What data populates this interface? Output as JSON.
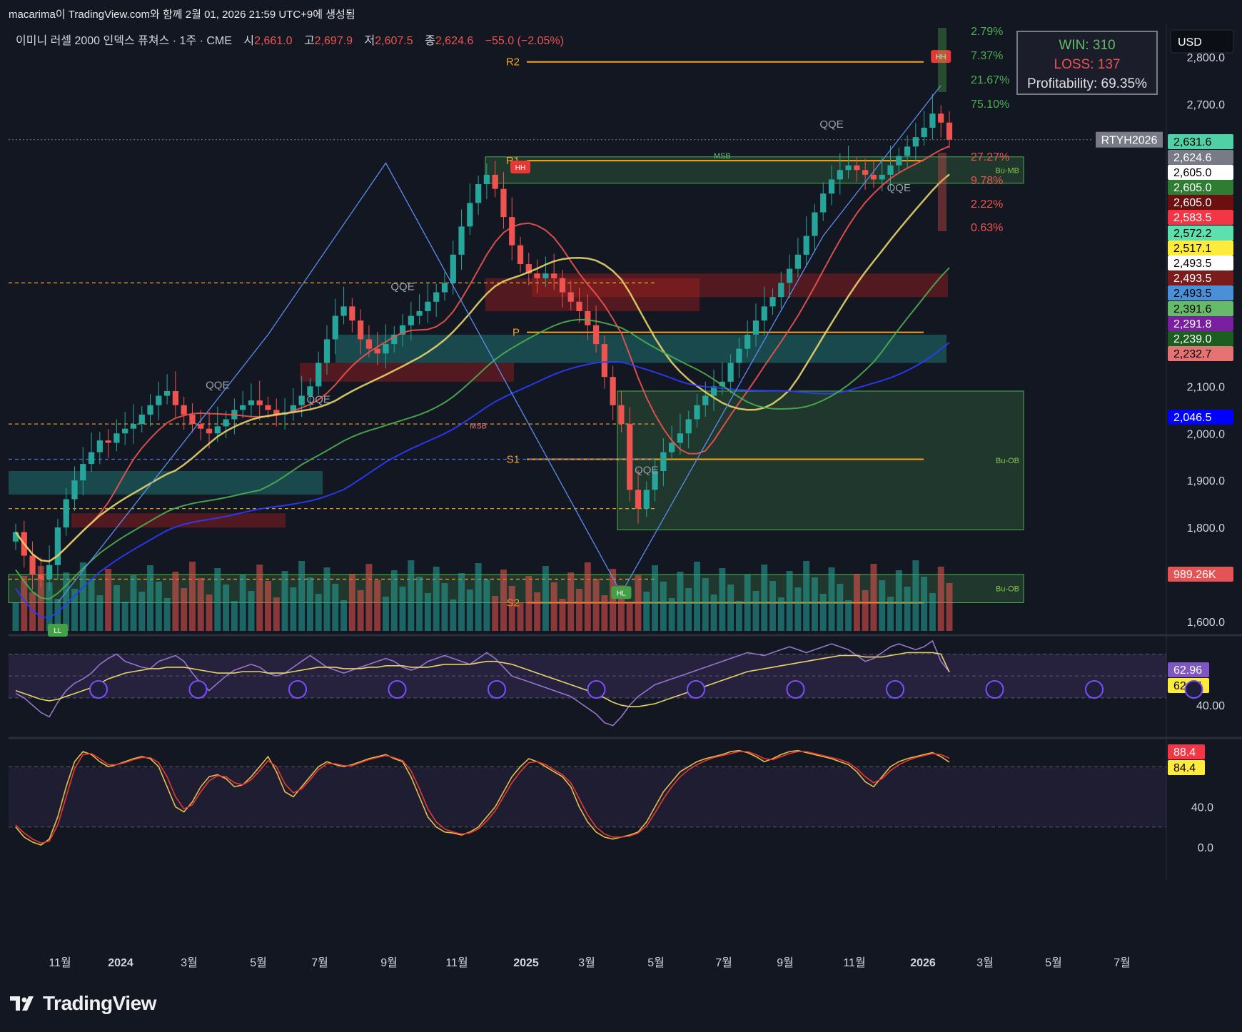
{
  "header": {
    "created_text": "macarima이 TradingView.com와 함께 2월 01, 2026 21:59 UTC+9에 생성됨"
  },
  "legend": {
    "symbol": "이미니 러셀 2000 인덱스 퓨쳐스 · 1주 · CME",
    "o_label": "시",
    "o_value": "2,661.0",
    "h_label": "고",
    "h_value": "2,697.9",
    "l_label": "저",
    "l_value": "2,607.5",
    "c_label": "종",
    "c_value": "2,624.6",
    "change": "−55.0 (−2.05%)"
  },
  "stats_box": {
    "win": "WIN: 310",
    "loss": "LOSS: 137",
    "profitability": "Profitability: 69.35%"
  },
  "currency": "USD",
  "colors": {
    "bg": "#131722",
    "up": "#26a69a",
    "down": "#ef5350",
    "pivot": "#f5a623",
    "ob_green": "#2e7d32",
    "ob_red": "#8b1a1a"
  },
  "chart_data": [
    {
      "type": "candlestick",
      "title": "",
      "x_range": [
        "2023-09",
        "2026-08"
      ],
      "x_ticks": [
        "11월",
        "2024",
        "3월",
        "5월",
        "7월",
        "9월",
        "11월",
        "2025",
        "3월",
        "5월",
        "7월",
        "9월",
        "11월",
        "2026",
        "3월",
        "5월",
        "7월"
      ],
      "y_ticks": [
        "2,800.0",
        "2,700.0",
        "2,100.0",
        "2,000.0",
        "1,900.0",
        "1,800.0",
        "1,600.0"
      ],
      "ylim": [
        1580,
        2870
      ],
      "pivots": [
        {
          "label": "R2",
          "value": 2790
        },
        {
          "label": "R1",
          "value": 2580
        },
        {
          "label": "P",
          "value": 2215
        },
        {
          "label": "S1",
          "value": 1945
        },
        {
          "label": "S2",
          "value": 1640
        }
      ],
      "zones": [
        {
          "label": "Bu-MB",
          "low": 2532,
          "high": 2588
        },
        {
          "label": "Bu-OB",
          "low": 1795,
          "high": 2090
        },
        {
          "label": "Bu-OB",
          "low": 1640,
          "high": 1700
        }
      ],
      "annotations": [
        "HH",
        "HH",
        "HL",
        "LL",
        "QQE",
        "QQE",
        "QQE",
        "QQE",
        "QQE",
        "QQE",
        "MSB",
        "MSB"
      ],
      "fib_levels": [
        "2.79%",
        "7.37%",
        "21.67%",
        "75.10%",
        "27.27%",
        "9.78%",
        "2.22%",
        "0.63%"
      ],
      "price_tags": [
        {
          "value": "2,631.6",
          "bg": "#4fd1a5",
          "fg": "#000000"
        },
        {
          "value": "2,624.6",
          "bg": "#787b86",
          "fg": "#ffffff"
        },
        {
          "value": "2,605.0",
          "bg": "#ffffff",
          "fg": "#000000"
        },
        {
          "value": "2,605.0",
          "bg": "#2e7d32",
          "fg": "#ffffff"
        },
        {
          "value": "2,605.0",
          "bg": "#6b0f0f",
          "fg": "#ffffff"
        },
        {
          "value": "2,583.5",
          "bg": "#f23645",
          "fg": "#ffffff"
        },
        {
          "value": "2,572.2",
          "bg": "#5ce0b0",
          "fg": "#000000"
        },
        {
          "value": "2,517.1",
          "bg": "#ffeb3b",
          "fg": "#000000"
        },
        {
          "value": "2,493.5",
          "bg": "#ffffff",
          "fg": "#000000"
        },
        {
          "value": "2,493.5",
          "bg": "#7a1c1c",
          "fg": "#ffffff"
        },
        {
          "value": "2,493.5",
          "bg": "#4a90d9",
          "fg": "#000000"
        },
        {
          "value": "2,391.6",
          "bg": "#66bb6a",
          "fg": "#000000"
        },
        {
          "value": "2,291.8",
          "bg": "#7b1fa2",
          "fg": "#ffffff"
        },
        {
          "value": "2,239.0",
          "bg": "#1b5e20",
          "fg": "#ffffff"
        },
        {
          "value": "2,232.7",
          "bg": "#e57373",
          "fg": "#000000"
        },
        {
          "value": "2,046.5",
          "bg": "#0000ff",
          "fg": "#ffffff"
        },
        {
          "value": "989.26K",
          "bg": "#e55454",
          "fg": "#ffffff"
        }
      ],
      "symbol_tag": "RTYH2026",
      "last_close": 2624.6,
      "close": [
        1790,
        1740,
        1700,
        1690,
        1720,
        1800,
        1860,
        1900,
        1935,
        1960,
        1985,
        1980,
        2000,
        2010,
        2020,
        2040,
        2060,
        2080,
        2090,
        2060,
        2040,
        2020,
        2010,
        2000,
        2015,
        2030,
        2050,
        2060,
        2070,
        2060,
        2050,
        2040,
        2045,
        2060,
        2080,
        2100,
        2150,
        2200,
        2250,
        2270,
        2240,
        2200,
        2180,
        2170,
        2190,
        2210,
        2230,
        2250,
        2260,
        2280,
        2300,
        2320,
        2380,
        2440,
        2490,
        2530,
        2550,
        2520,
        2460,
        2400,
        2360,
        2340,
        2330,
        2340,
        2330,
        2300,
        2280,
        2260,
        2230,
        2190,
        2120,
        2060,
        2020,
        1880,
        1840,
        1880,
        1920,
        1960,
        1980,
        2000,
        2030,
        2060,
        2080,
        2100,
        2110,
        2150,
        2180,
        2210,
        2240,
        2270,
        2290,
        2320,
        2350,
        2380,
        2420,
        2470,
        2510,
        2540,
        2560,
        2570,
        2560,
        2550,
        2540,
        2550,
        2570,
        2590,
        2610,
        2630,
        2650,
        2680,
        2661,
        2624.6
      ]
    },
    {
      "type": "line",
      "title": "",
      "y_ticks": [
        "40.00"
      ],
      "ylim": [
        20,
        85
      ],
      "series": [
        {
          "color": "#9575cd",
          "values": [
            48,
            45,
            40,
            35,
            32,
            42,
            50,
            55,
            58,
            62,
            68,
            72,
            75,
            70,
            68,
            66,
            65,
            70,
            72,
            74,
            70,
            62,
            55,
            50,
            55,
            60,
            64,
            66,
            68,
            66,
            62,
            60,
            62,
            66,
            70,
            74,
            70,
            66,
            64,
            62,
            64,
            66,
            68,
            70,
            72,
            70,
            66,
            64,
            66,
            70,
            72,
            74,
            72,
            70,
            68,
            72,
            76,
            72,
            66,
            60,
            58,
            56,
            54,
            52,
            50,
            48,
            46,
            42,
            38,
            34,
            28,
            26,
            32,
            40,
            46,
            50,
            54,
            56,
            58,
            60,
            62,
            64,
            66,
            68,
            70,
            72,
            74,
            76,
            75,
            74,
            76,
            78,
            80,
            78,
            76,
            78,
            80,
            82,
            80,
            78,
            74,
            70,
            72,
            76,
            80,
            82,
            80,
            78,
            80,
            84,
            70,
            62.96
          ]
        },
        {
          "color": "#e6d36a",
          "values": [
            50,
            48,
            46,
            44,
            43,
            44,
            46,
            48,
            50,
            52,
            55,
            58,
            60,
            62,
            63,
            64,
            65,
            65,
            66,
            66,
            66,
            65,
            64,
            63,
            62,
            62,
            62,
            63,
            63,
            63,
            62,
            62,
            62,
            63,
            64,
            65,
            66,
            66,
            66,
            65,
            65,
            65,
            66,
            66,
            67,
            67,
            67,
            66,
            66,
            66,
            67,
            68,
            68,
            68,
            68,
            69,
            70,
            70,
            69,
            68,
            66,
            64,
            62,
            60,
            58,
            56,
            54,
            52,
            50,
            48,
            45,
            42,
            40,
            39,
            39,
            40,
            41,
            43,
            45,
            47,
            49,
            51,
            53,
            55,
            57,
            59,
            61,
            63,
            64,
            65,
            66,
            67,
            68,
            69,
            70,
            71,
            72,
            73,
            74,
            74,
            74,
            73,
            73,
            73,
            74,
            75,
            76,
            76,
            76,
            76,
            75,
            62.64
          ]
        }
      ],
      "tags": [
        {
          "value": "62.96",
          "bg": "#7e57c2",
          "fg": "#ffffff"
        },
        {
          "value": "62.64",
          "bg": "#ffeb3b",
          "fg": "#000000"
        }
      ]
    },
    {
      "type": "line",
      "title": "",
      "y_ticks": [
        "40.0",
        "0.0"
      ],
      "ylim": [
        -5,
        105
      ],
      "series": [
        {
          "color": "#e6c04a",
          "values": [
            20,
            10,
            5,
            2,
            8,
            30,
            60,
            85,
            95,
            92,
            85,
            80,
            82,
            85,
            88,
            90,
            88,
            80,
            60,
            40,
            35,
            45,
            60,
            70,
            72,
            68,
            60,
            62,
            70,
            80,
            90,
            75,
            55,
            50,
            60,
            70,
            80,
            85,
            82,
            80,
            82,
            85,
            88,
            90,
            92,
            88,
            85,
            70,
            50,
            30,
            20,
            15,
            14,
            12,
            15,
            20,
            30,
            40,
            55,
            70,
            80,
            88,
            85,
            80,
            75,
            70,
            60,
            40,
            25,
            15,
            10,
            8,
            10,
            12,
            15,
            25,
            40,
            55,
            65,
            75,
            80,
            85,
            88,
            90,
            92,
            95,
            96,
            94,
            90,
            85,
            88,
            92,
            95,
            96,
            94,
            92,
            90,
            88,
            85,
            82,
            75,
            65,
            60,
            70,
            80,
            85,
            88,
            90,
            92,
            94,
            90,
            84.4
          ]
        },
        {
          "color": "#e53935",
          "values": [
            22,
            14,
            8,
            4,
            6,
            22,
            50,
            78,
            92,
            93,
            88,
            82,
            82,
            84,
            87,
            89,
            89,
            84,
            70,
            50,
            38,
            42,
            55,
            66,
            71,
            70,
            64,
            62,
            67,
            76,
            86,
            80,
            63,
            54,
            58,
            67,
            77,
            83,
            83,
            81,
            81,
            84,
            87,
            89,
            91,
            89,
            86,
            76,
            58,
            38,
            25,
            18,
            15,
            13,
            14,
            18,
            26,
            36,
            50,
            64,
            75,
            84,
            85,
            82,
            77,
            72,
            64,
            48,
            32,
            20,
            13,
            10,
            10,
            11,
            14,
            21,
            34,
            48,
            60,
            70,
            77,
            82,
            86,
            89,
            91,
            93,
            95,
            95,
            92,
            88,
            87,
            90,
            93,
            95,
            95,
            93,
            91,
            89,
            87,
            84,
            78,
            70,
            64,
            68,
            76,
            82,
            86,
            89,
            91,
            93,
            92,
            88.4
          ]
        }
      ],
      "tags": [
        {
          "value": "88.4",
          "bg": "#f23645",
          "fg": "#ffffff"
        },
        {
          "value": "84.4",
          "bg": "#ffeb3b",
          "fg": "#000000"
        }
      ]
    }
  ],
  "footer": {
    "brand": "TradingView"
  }
}
